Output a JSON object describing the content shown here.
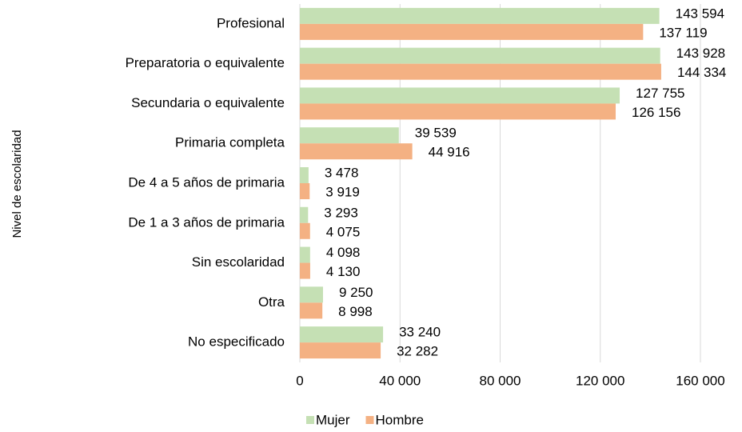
{
  "chart_data": {
    "type": "bar",
    "orientation": "horizontal",
    "y_axis_label": "Nivel de escolaridad",
    "categories": [
      "Profesional",
      "Preparatoria o equivalente",
      "Secundaria o equivalente",
      "Primaria completa",
      "De 4 a 5 años de primaria",
      "De 1 a 3 años de primaria",
      "Sin escolaridad",
      "Otra",
      "No especificado"
    ],
    "series": [
      {
        "name": "Mujer",
        "color": "#c5e0b4",
        "values": [
          143594,
          143928,
          127755,
          39539,
          3478,
          3293,
          4098,
          9250,
          33240
        ],
        "value_labels": [
          "143 594",
          "143 928",
          "127 755",
          "39 539",
          "3 478",
          "3 293",
          "4 098",
          "9 250",
          "33 240"
        ]
      },
      {
        "name": "Hombre",
        "color": "#f4b183",
        "values": [
          137119,
          144334,
          126156,
          44916,
          3919,
          4075,
          4130,
          8998,
          32282
        ],
        "value_labels": [
          "137 119",
          "144 334",
          "126 156",
          "44 916",
          "3 919",
          "4 075",
          "4 130",
          "8 998",
          "32 282"
        ]
      }
    ],
    "xlim": [
      0,
      160000
    ],
    "xticks": [
      0,
      {
        "value": 40000,
        "label": "40 000"
      },
      {
        "value": 80000,
        "label": "80 000"
      },
      {
        "value": 120000,
        "label": "120 000"
      },
      {
        "value": 160000,
        "label": "160 000"
      }
    ],
    "grid": true,
    "legend": "bottom"
  }
}
